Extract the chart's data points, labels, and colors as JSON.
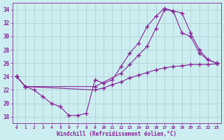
{
  "background_color": "#cceef0",
  "line_color": "#882299",
  "grid_color": "#aacccc",
  "xlabel": "Windchill (Refroidissement éolien,°C)",
  "xlim": [
    -0.5,
    23.5
  ],
  "ylim": [
    17,
    35
  ],
  "yticks": [
    18,
    20,
    22,
    24,
    26,
    28,
    30,
    32,
    34
  ],
  "xticks": [
    0,
    1,
    2,
    3,
    4,
    5,
    6,
    7,
    8,
    9,
    10,
    11,
    12,
    13,
    14,
    15,
    16,
    17,
    18,
    19,
    20,
    21,
    22,
    23
  ],
  "series": [
    {
      "x": [
        0,
        1,
        2,
        3,
        4,
        5,
        6,
        7,
        8,
        9,
        10,
        11,
        12,
        13,
        14,
        15,
        16,
        17,
        18,
        19,
        20,
        21,
        22,
        23
      ],
      "y": [
        24.0,
        22.5,
        22.0,
        21.0,
        20.0,
        19.5,
        18.2,
        18.2,
        18.5,
        23.5,
        23.0,
        23.5,
        25.5,
        27.5,
        29.0,
        31.5,
        33.0,
        34.2,
        33.8,
        30.5,
        30.0,
        27.5,
        26.5,
        26.0
      ]
    },
    {
      "x": [
        0,
        1,
        9,
        12,
        13,
        14,
        15,
        16,
        17,
        18,
        19,
        20,
        21,
        22,
        23
      ],
      "y": [
        24.0,
        22.5,
        22.5,
        24.5,
        25.8,
        27.2,
        28.5,
        31.2,
        34.0,
        33.8,
        33.5,
        30.5,
        28.0,
        26.5,
        26.0
      ]
    },
    {
      "x": [
        0,
        1,
        9,
        10,
        11,
        12,
        13,
        14,
        15,
        16,
        17,
        18,
        19,
        20,
        21,
        22,
        23
      ],
      "y": [
        24.0,
        22.5,
        22.0,
        22.3,
        22.8,
        23.2,
        23.8,
        24.2,
        24.6,
        25.0,
        25.3,
        25.5,
        25.6,
        25.8,
        25.8,
        25.8,
        25.9
      ]
    }
  ]
}
